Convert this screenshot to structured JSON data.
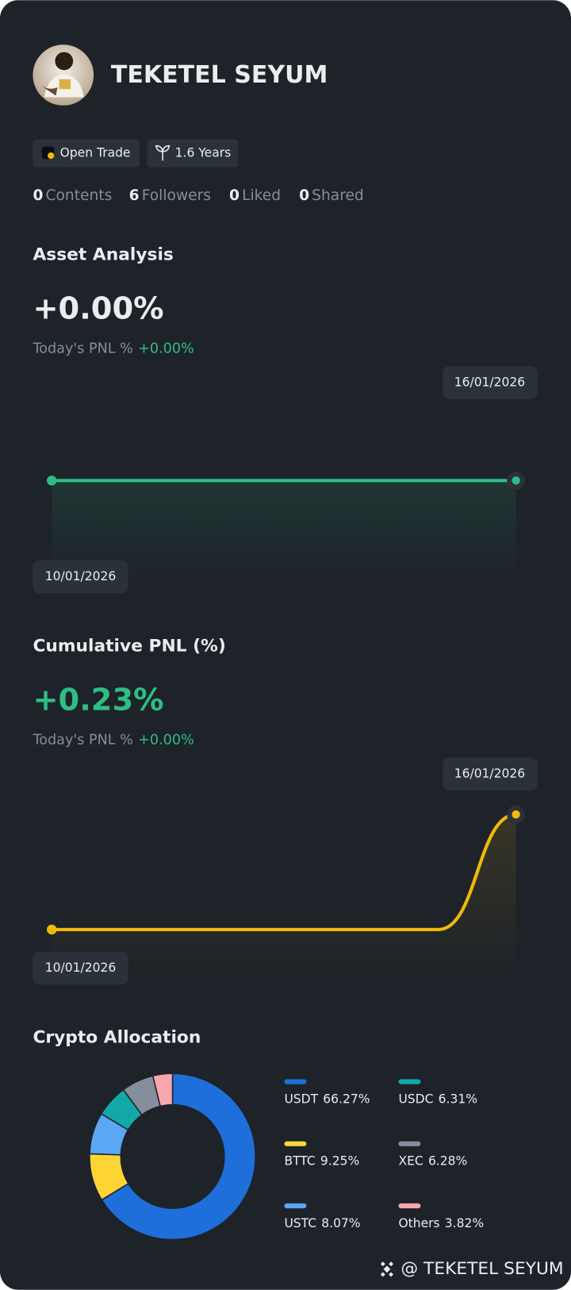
{
  "profile": {
    "name": "TEKETEL SEYUM",
    "badges": [
      "Open Trade",
      "1.6 Years"
    ],
    "stats": [
      {
        "value": 0,
        "label": "Contents"
      },
      {
        "value": 6,
        "label": "Followers"
      },
      {
        "value": 0,
        "label": "Liked"
      },
      {
        "value": 0,
        "label": "Shared"
      }
    ]
  },
  "chart_data": [
    {
      "type": "line",
      "title": "Asset Analysis",
      "headline": "+0.00%",
      "headline_color": "#eaecef",
      "today_label": "Today's PNL %",
      "today_value": "+0.00%",
      "x": [
        "10/01/2026",
        null,
        null,
        null,
        null,
        null,
        "16/01/2026"
      ],
      "series": [
        {
          "color": "#2ebd85",
          "values": [
            0,
            0,
            0,
            0,
            0,
            0,
            0
          ]
        }
      ]
    },
    {
      "type": "line",
      "title": "Cumulative PNL (%)",
      "headline": "+0.23%",
      "headline_color": "#2ebd85",
      "today_label": "Today's PNL %",
      "today_value": "+0.00%",
      "x": [
        "10/01/2026",
        null,
        null,
        null,
        null,
        null,
        "16/01/2026"
      ],
      "series": [
        {
          "color": "#f0b90b",
          "values": [
            0,
            0,
            0,
            0,
            0,
            0,
            0.23
          ]
        }
      ]
    },
    {
      "type": "pie",
      "title": "Crypto Allocation",
      "categories": [
        "USDT",
        "BTTC",
        "USTC",
        "USDC",
        "XEC",
        "Others"
      ],
      "values": [
        66.27,
        9.25,
        8.07,
        6.31,
        6.28,
        3.82
      ],
      "value_labels": [
        "66.27%",
        "9.25%",
        "8.07%",
        "6.31%",
        "6.28%",
        "3.82%"
      ],
      "colors": [
        "#1e6fd9",
        "#fcd535",
        "#5aa7f5",
        "#13a8a8",
        "#848e9c",
        "#f7a6ad"
      ]
    }
  ],
  "footer": {
    "watermark": "@ TEKETEL SEYUM"
  }
}
